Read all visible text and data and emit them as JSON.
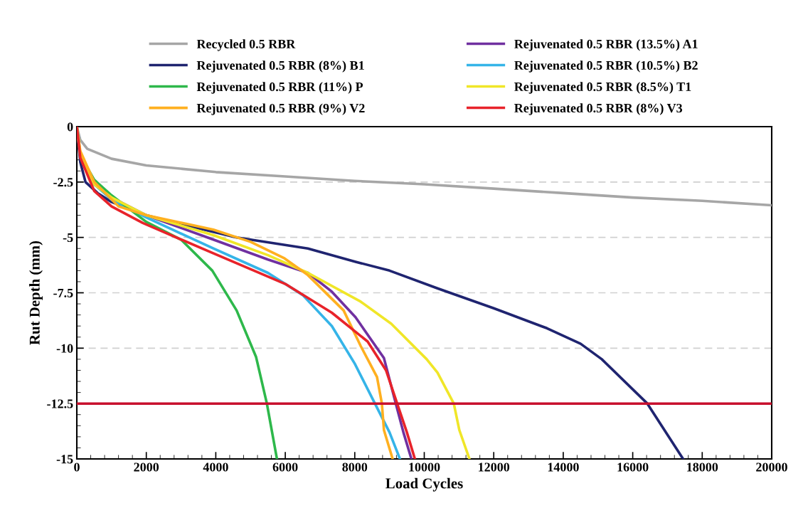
{
  "chart_data": {
    "type": "line",
    "xlabel": "Load Cycles",
    "ylabel": "Rut Depth (mm)",
    "xlim": [
      0,
      20000
    ],
    "xticks": [
      0,
      2000,
      4000,
      6000,
      8000,
      10000,
      12000,
      14000,
      16000,
      18000,
      20000
    ],
    "ylim": [
      -15,
      0
    ],
    "yticks": [
      0,
      -2.5,
      -5,
      -7.5,
      -10,
      -12.5,
      -15
    ],
    "grid": "y",
    "legend": "top",
    "marker": "none",
    "line_style": "solid",
    "ref_lines": [
      {
        "axis": "y",
        "value": -12.5,
        "color": "#c8102e"
      }
    ],
    "series": [
      {
        "name": "Recycled 0.5 RBR",
        "color": "#a6a6a6",
        "x": [
          0,
          100,
          300,
          1000,
          2000,
          4000,
          6000,
          8000,
          10000,
          12000,
          14000,
          16000,
          18000,
          20000
        ],
        "values": [
          0,
          -0.6,
          -1.0,
          -1.45,
          -1.75,
          -2.05,
          -2.25,
          -2.45,
          -2.6,
          -2.8,
          -3.0,
          -3.2,
          -3.35,
          -3.55
        ]
      },
      {
        "name": "Rejuvenated 0.5 RBR (13.5%) A1",
        "color": "#7030a0",
        "x": [
          0,
          100,
          500,
          1000,
          2000,
          3930,
          5500,
          6650,
          7340,
          8020,
          8840,
          9180,
          9400,
          9630
        ],
        "values": [
          0,
          -1.3,
          -2.6,
          -3.2,
          -4.0,
          -5.1,
          -6.0,
          -6.6,
          -7.45,
          -8.6,
          -10.45,
          -12.5,
          -13.8,
          -15
        ]
      },
      {
        "name": "Rejuvenated 0.5 RBR (8%) B1",
        "color": "#1f2470",
        "x": [
          0,
          100,
          250,
          600,
          1000,
          2000,
          3000,
          4600,
          6650,
          8025,
          9000,
          10380,
          12000,
          13530,
          14500,
          15110,
          16420,
          17450
        ],
        "values": [
          0,
          -1.6,
          -2.5,
          -3.0,
          -3.4,
          -4.0,
          -4.4,
          -5.0,
          -5.5,
          -6.1,
          -6.5,
          -7.3,
          -8.2,
          -9.1,
          -9.8,
          -10.5,
          -12.5,
          -15
        ]
      },
      {
        "name": "Rejuvenated 0.5 RBR (10.5%) B2",
        "color": "#35b4e8",
        "x": [
          0,
          100,
          500,
          1000,
          2000,
          3930,
          5500,
          6500,
          7340,
          8000,
          8580,
          9000,
          9300
        ],
        "values": [
          0,
          -1.3,
          -2.6,
          -3.3,
          -4.1,
          -5.5,
          -6.6,
          -7.6,
          -9.0,
          -10.7,
          -12.5,
          -13.8,
          -15
        ]
      },
      {
        "name": "Rejuvenated 0.5 RBR (11%) P",
        "color": "#2eb84b",
        "x": [
          0,
          100,
          500,
          1000,
          2000,
          3000,
          3900,
          4600,
          5160,
          5470,
          5760
        ],
        "values": [
          0,
          -1.3,
          -2.4,
          -3.1,
          -4.3,
          -5.1,
          -6.5,
          -8.3,
          -10.4,
          -12.5,
          -15
        ]
      },
      {
        "name": "Rejuvenated 0.5 RBR (8.5%) T1",
        "color": "#f0e628",
        "x": [
          0,
          100,
          500,
          1000,
          2000,
          3930,
          5500,
          6650,
          8170,
          9050,
          10070,
          10380,
          10850,
          11010,
          11300
        ],
        "values": [
          0,
          -1.2,
          -2.6,
          -3.2,
          -4.0,
          -4.9,
          -5.8,
          -6.6,
          -7.9,
          -8.9,
          -10.5,
          -11.1,
          -12.5,
          -13.7,
          -15
        ]
      },
      {
        "name": "Rejuvenated 0.5 RBR (9%) V2",
        "color": "#ffb020",
        "x": [
          0,
          100,
          500,
          1200,
          2000,
          3930,
          5000,
          5980,
          6650,
          7680,
          8170,
          8640,
          8780,
          8840,
          9090
        ],
        "values": [
          0,
          -1.1,
          -2.5,
          -3.6,
          -4.0,
          -4.65,
          -5.2,
          -5.95,
          -6.7,
          -8.3,
          -9.9,
          -11.3,
          -12.5,
          -13.7,
          -15
        ]
      },
      {
        "name": "Rejuvenated 0.5 RBR (8%) V3",
        "color": "#e8232a",
        "x": [
          0,
          100,
          500,
          1000,
          1900,
          3900,
          6000,
          7340,
          8370,
          8900,
          9220,
          9500,
          9730
        ],
        "values": [
          0,
          -1.4,
          -2.9,
          -3.6,
          -4.35,
          -5.7,
          -7.1,
          -8.4,
          -9.7,
          -11.0,
          -12.5,
          -13.8,
          -15
        ]
      }
    ]
  }
}
